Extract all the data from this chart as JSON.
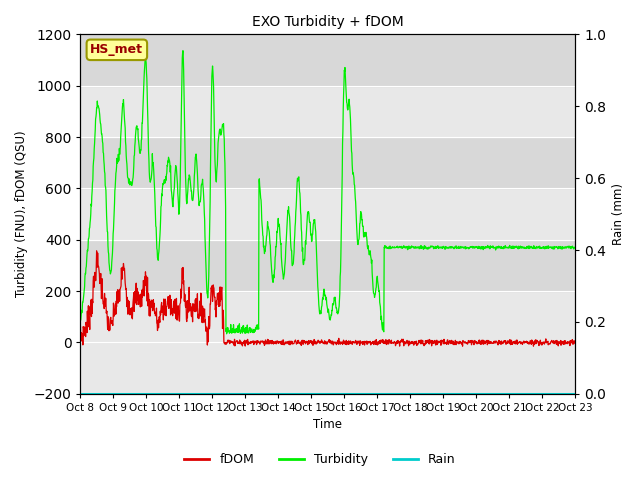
{
  "title": "EXO Turbidity + fDOM",
  "ylabel_left": "Turbidity (FNU), fDOM (QSU)",
  "ylabel_right": "Rain (mm)",
  "xlabel": "Time",
  "ylim_left": [
    -200,
    1200
  ],
  "ylim_right": [
    0.0,
    1.0
  ],
  "yticks_left": [
    -200,
    0,
    200,
    400,
    600,
    800,
    1000,
    1200
  ],
  "yticks_right": [
    0.0,
    0.2,
    0.4,
    0.6,
    0.8,
    1.0
  ],
  "xtick_labels": [
    "Oct 8",
    "Oct 9",
    "Oct 10",
    "Oct 11",
    "Oct 12",
    "Oct 13",
    "Oct 14",
    "Oct 15",
    "Oct 16",
    "Oct 17",
    "Oct 18",
    "Oct 19",
    "Oct 20",
    "Oct 21",
    "Oct 22",
    "Oct 23"
  ],
  "color_fdom": "#dd0000",
  "color_turbidity": "#00ee00",
  "color_rain": "#00cccc",
  "color_shading_dark": "#d0d0d0",
  "color_shading_light": "#e8e8e8",
  "label_box_text": "HS_met",
  "label_box_facecolor": "#ffff99",
  "label_box_edgecolor": "#999900",
  "background_color": "#ffffff",
  "plot_bg_color": "#e8e8e8",
  "legend_labels": [
    "fDOM",
    "Turbidity",
    "Rain"
  ],
  "n_days": 15
}
